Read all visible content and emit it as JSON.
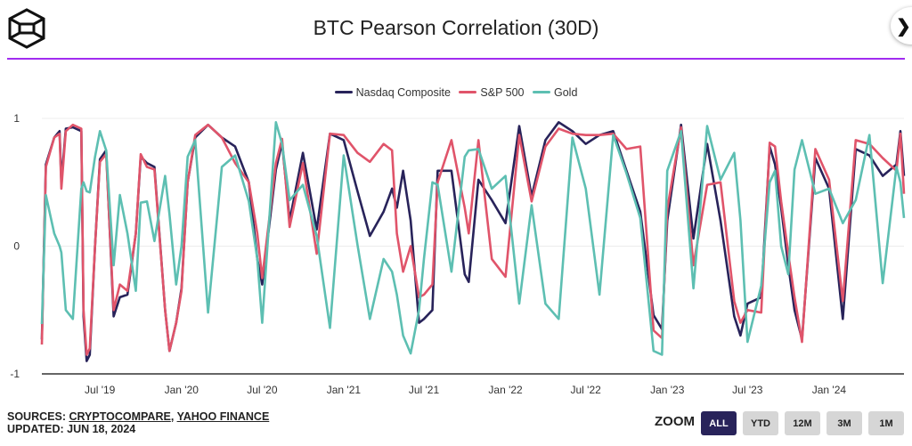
{
  "header": {
    "title": "BTC Pearson Correlation (30D)",
    "logo_icon": "hexagon-cube-logo-icon",
    "close_icon": "close-icon",
    "divider_color": "#a12cf0"
  },
  "legend": [
    {
      "name": "Nasdaq Composite",
      "color": "#28235a"
    },
    {
      "name": "S&P 500",
      "color": "#e0546a"
    },
    {
      "name": "Gold",
      "color": "#5dbfb2"
    }
  ],
  "chart_data": {
    "type": "line",
    "title": "BTC Pearson Correlation (30D)",
    "xlabel": "",
    "ylabel": "",
    "ylim": [
      -1,
      1
    ],
    "xlim": [
      "2019-02-20",
      "2024-06-18"
    ],
    "yticks": [
      "1",
      "0",
      "-1"
    ],
    "xticks": [
      {
        "label": "Jul '19",
        "date": "2019-07-01"
      },
      {
        "label": "Jan '20",
        "date": "2020-01-01"
      },
      {
        "label": "Jul '20",
        "date": "2020-07-01"
      },
      {
        "label": "Jan '21",
        "date": "2021-01-01"
      },
      {
        "label": "Jul '21",
        "date": "2021-07-01"
      },
      {
        "label": "Jan '22",
        "date": "2022-01-01"
      },
      {
        "label": "Jul '22",
        "date": "2022-07-01"
      },
      {
        "label": "Jan '23",
        "date": "2023-01-01"
      },
      {
        "label": "Jul '23",
        "date": "2023-07-01"
      },
      {
        "label": "Jan '24",
        "date": "2024-01-01"
      }
    ],
    "grid": true,
    "legend_position": "top",
    "x": [
      "2019-02-20",
      "2019-03-01",
      "2019-03-20",
      "2019-04-01",
      "2019-04-05",
      "2019-04-15",
      "2019-05-01",
      "2019-05-20",
      "2019-05-25",
      "2019-06-01",
      "2019-06-08",
      "2019-06-20",
      "2019-07-01",
      "2019-07-15",
      "2019-08-01",
      "2019-08-15",
      "2019-09-01",
      "2019-09-20",
      "2019-10-01",
      "2019-10-15",
      "2019-11-01",
      "2019-11-25",
      "2019-12-05",
      "2019-12-20",
      "2020-01-01",
      "2020-01-15",
      "2020-02-01",
      "2020-03-01",
      "2020-04-01",
      "2020-05-01",
      "2020-06-01",
      "2020-06-20",
      "2020-07-01",
      "2020-08-01",
      "2020-08-15",
      "2020-09-01",
      "2020-10-01",
      "2020-11-01",
      "2020-12-01",
      "2021-01-01",
      "2021-02-01",
      "2021-03-01",
      "2021-04-01",
      "2021-04-20",
      "2021-05-01",
      "2021-05-15",
      "2021-06-01",
      "2021-06-20",
      "2021-07-01",
      "2021-07-20",
      "2021-08-01",
      "2021-09-01",
      "2021-10-01",
      "2021-10-10",
      "2021-11-01",
      "2021-12-01",
      "2022-01-01",
      "2022-02-01",
      "2022-03-01",
      "2022-04-01",
      "2022-05-01",
      "2022-06-01",
      "2022-07-01",
      "2022-08-01",
      "2022-09-01",
      "2022-10-01",
      "2022-11-01",
      "2022-12-01",
      "2022-12-20",
      "2023-01-01",
      "2023-02-01",
      "2023-03-01",
      "2023-04-01",
      "2023-05-01",
      "2023-06-01",
      "2023-06-15",
      "2023-07-01",
      "2023-08-01",
      "2023-08-20",
      "2023-09-01",
      "2023-09-15",
      "2023-10-01",
      "2023-10-15",
      "2023-11-01",
      "2023-12-01",
      "2024-01-01",
      "2024-02-01",
      "2024-03-01",
      "2024-04-01",
      "2024-05-01",
      "2024-06-01",
      "2024-06-10",
      "2024-06-18"
    ],
    "series": [
      {
        "name": "Nasdaq Composite",
        "color": "#28235a",
        "values": [
          -0.73,
          0.64,
          0.85,
          0.9,
          0.5,
          0.92,
          0.93,
          0.9,
          -0.55,
          -0.9,
          -0.85,
          0.0,
          0.68,
          0.75,
          -0.55,
          -0.4,
          -0.38,
          0.1,
          0.7,
          0.65,
          0.62,
          -0.5,
          -0.82,
          -0.6,
          -0.33,
          0.5,
          0.85,
          0.95,
          0.85,
          0.78,
          0.5,
          -0.1,
          -0.3,
          0.6,
          0.81,
          0.2,
          0.73,
          0.13,
          0.88,
          0.83,
          0.43,
          0.08,
          0.27,
          0.45,
          0.3,
          0.59,
          0.2,
          -0.6,
          -0.57,
          -0.5,
          0.59,
          0.59,
          -0.22,
          -0.28,
          0.52,
          0.36,
          0.18,
          0.94,
          0.39,
          0.83,
          0.97,
          0.9,
          0.8,
          0.87,
          0.9,
          0.59,
          0.27,
          -0.54,
          -0.65,
          0.2,
          0.95,
          0.06,
          0.8,
          0.2,
          -0.55,
          -0.7,
          -0.45,
          -0.4,
          0.78,
          0.64,
          0.3,
          -0.15,
          -0.5,
          -0.73,
          0.69,
          0.45,
          -0.57,
          0.76,
          0.71,
          0.55,
          0.64,
          0.9,
          0.55
        ]
      },
      {
        "name": "S&P 500",
        "color": "#e0546a",
        "values": [
          -0.77,
          0.62,
          0.85,
          0.88,
          0.45,
          0.9,
          0.95,
          0.92,
          -0.5,
          -0.85,
          -0.8,
          0.0,
          0.66,
          0.72,
          -0.5,
          -0.3,
          -0.35,
          0.1,
          0.72,
          0.62,
          0.6,
          -0.5,
          -0.82,
          -0.6,
          -0.35,
          0.5,
          0.87,
          0.95,
          0.85,
          0.65,
          0.5,
          0.1,
          -0.25,
          0.65,
          0.84,
          0.15,
          0.65,
          -0.06,
          0.88,
          0.87,
          0.73,
          0.66,
          0.8,
          0.75,
          0.1,
          -0.2,
          0.0,
          -0.4,
          -0.38,
          -0.3,
          0.5,
          0.83,
          0.3,
          0.1,
          0.83,
          -0.1,
          -0.24,
          0.87,
          0.35,
          0.78,
          0.92,
          0.88,
          0.87,
          0.87,
          0.88,
          0.76,
          0.78,
          -0.66,
          -0.72,
          0.29,
          0.93,
          -0.15,
          0.48,
          0.5,
          -0.43,
          -0.6,
          -0.5,
          -0.52,
          0.81,
          0.78,
          0.35,
          -0.06,
          -0.4,
          -0.75,
          0.76,
          0.52,
          -0.43,
          0.83,
          0.8,
          0.69,
          0.59,
          0.88,
          0.41
        ]
      },
      {
        "name": "Gold",
        "color": "#5dbfb2",
        "values": [
          -0.61,
          0.4,
          0.1,
          0.0,
          -0.05,
          -0.5,
          -0.57,
          0.45,
          0.5,
          0.43,
          0.42,
          0.7,
          0.9,
          0.75,
          -0.15,
          0.4,
          0.1,
          -0.35,
          0.34,
          0.35,
          0.04,
          0.55,
          0.25,
          -0.3,
          0.0,
          0.7,
          0.83,
          -0.52,
          0.62,
          0.71,
          0.35,
          -0.1,
          -0.6,
          0.97,
          0.8,
          0.36,
          0.48,
          0.08,
          -0.64,
          0.71,
          0.01,
          -0.57,
          -0.1,
          -0.2,
          -0.38,
          -0.7,
          -0.84,
          -0.5,
          -0.1,
          0.5,
          0.48,
          -0.2,
          0.7,
          0.75,
          0.76,
          0.45,
          0.55,
          -0.45,
          0.32,
          -0.45,
          -0.57,
          0.85,
          0.45,
          -0.38,
          0.87,
          0.57,
          0.22,
          -0.82,
          -0.85,
          0.59,
          0.9,
          -0.33,
          0.94,
          0.52,
          0.73,
          0.2,
          -0.75,
          -0.31,
          0.5,
          0.59,
          0.0,
          -0.22,
          0.6,
          0.83,
          0.41,
          0.45,
          0.18,
          0.36,
          0.87,
          -0.29,
          0.62,
          0.5,
          0.22
        ]
      }
    ]
  },
  "footer": {
    "sources_prefix": "SOURCES: ",
    "source_1": "CRYPTOCOMPARE",
    "separator": ", ",
    "source_2": "YAHOO FINANCE",
    "updated": "UPDATED: JUN 18, 2024"
  },
  "zoom": {
    "label": "ZOOM",
    "buttons": [
      "ALL",
      "YTD",
      "12M",
      "3M",
      "1M"
    ],
    "active": "ALL",
    "active_color": "#28235a"
  }
}
